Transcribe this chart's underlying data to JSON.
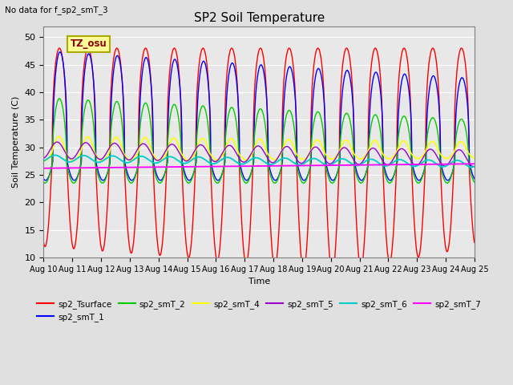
{
  "title": "SP2 Soil Temperature",
  "subtitle": "No data for f_sp2_smT_3",
  "ylabel": "Soil Temperature (C)",
  "xlabel": "Time",
  "tz_label": "TZ_osu",
  "ylim": [
    10,
    52
  ],
  "yticks": [
    10,
    15,
    20,
    25,
    30,
    35,
    40,
    45,
    50
  ],
  "xtick_labels": [
    "Aug 10",
    "Aug 11",
    "Aug 12",
    "Aug 13",
    "Aug 14",
    "Aug 15",
    "Aug 16",
    "Aug 17",
    "Aug 18",
    "Aug 19",
    "Aug 20",
    "Aug 21",
    "Aug 22",
    "Aug 23",
    "Aug 24",
    "Aug 25"
  ],
  "colors": {
    "sp2_Tsurface": "#ff0000",
    "sp2_smT_1": "#0000ff",
    "sp2_smT_2": "#00cc00",
    "sp2_smT_4": "#ffff00",
    "sp2_smT_5": "#9900cc",
    "sp2_smT_6": "#00cccc",
    "sp2_smT_7": "#ff00ff"
  },
  "bg_color": "#e0e0e0",
  "plot_bg": "#e8e8e8",
  "n_days": 15,
  "pts_per_day": 144
}
